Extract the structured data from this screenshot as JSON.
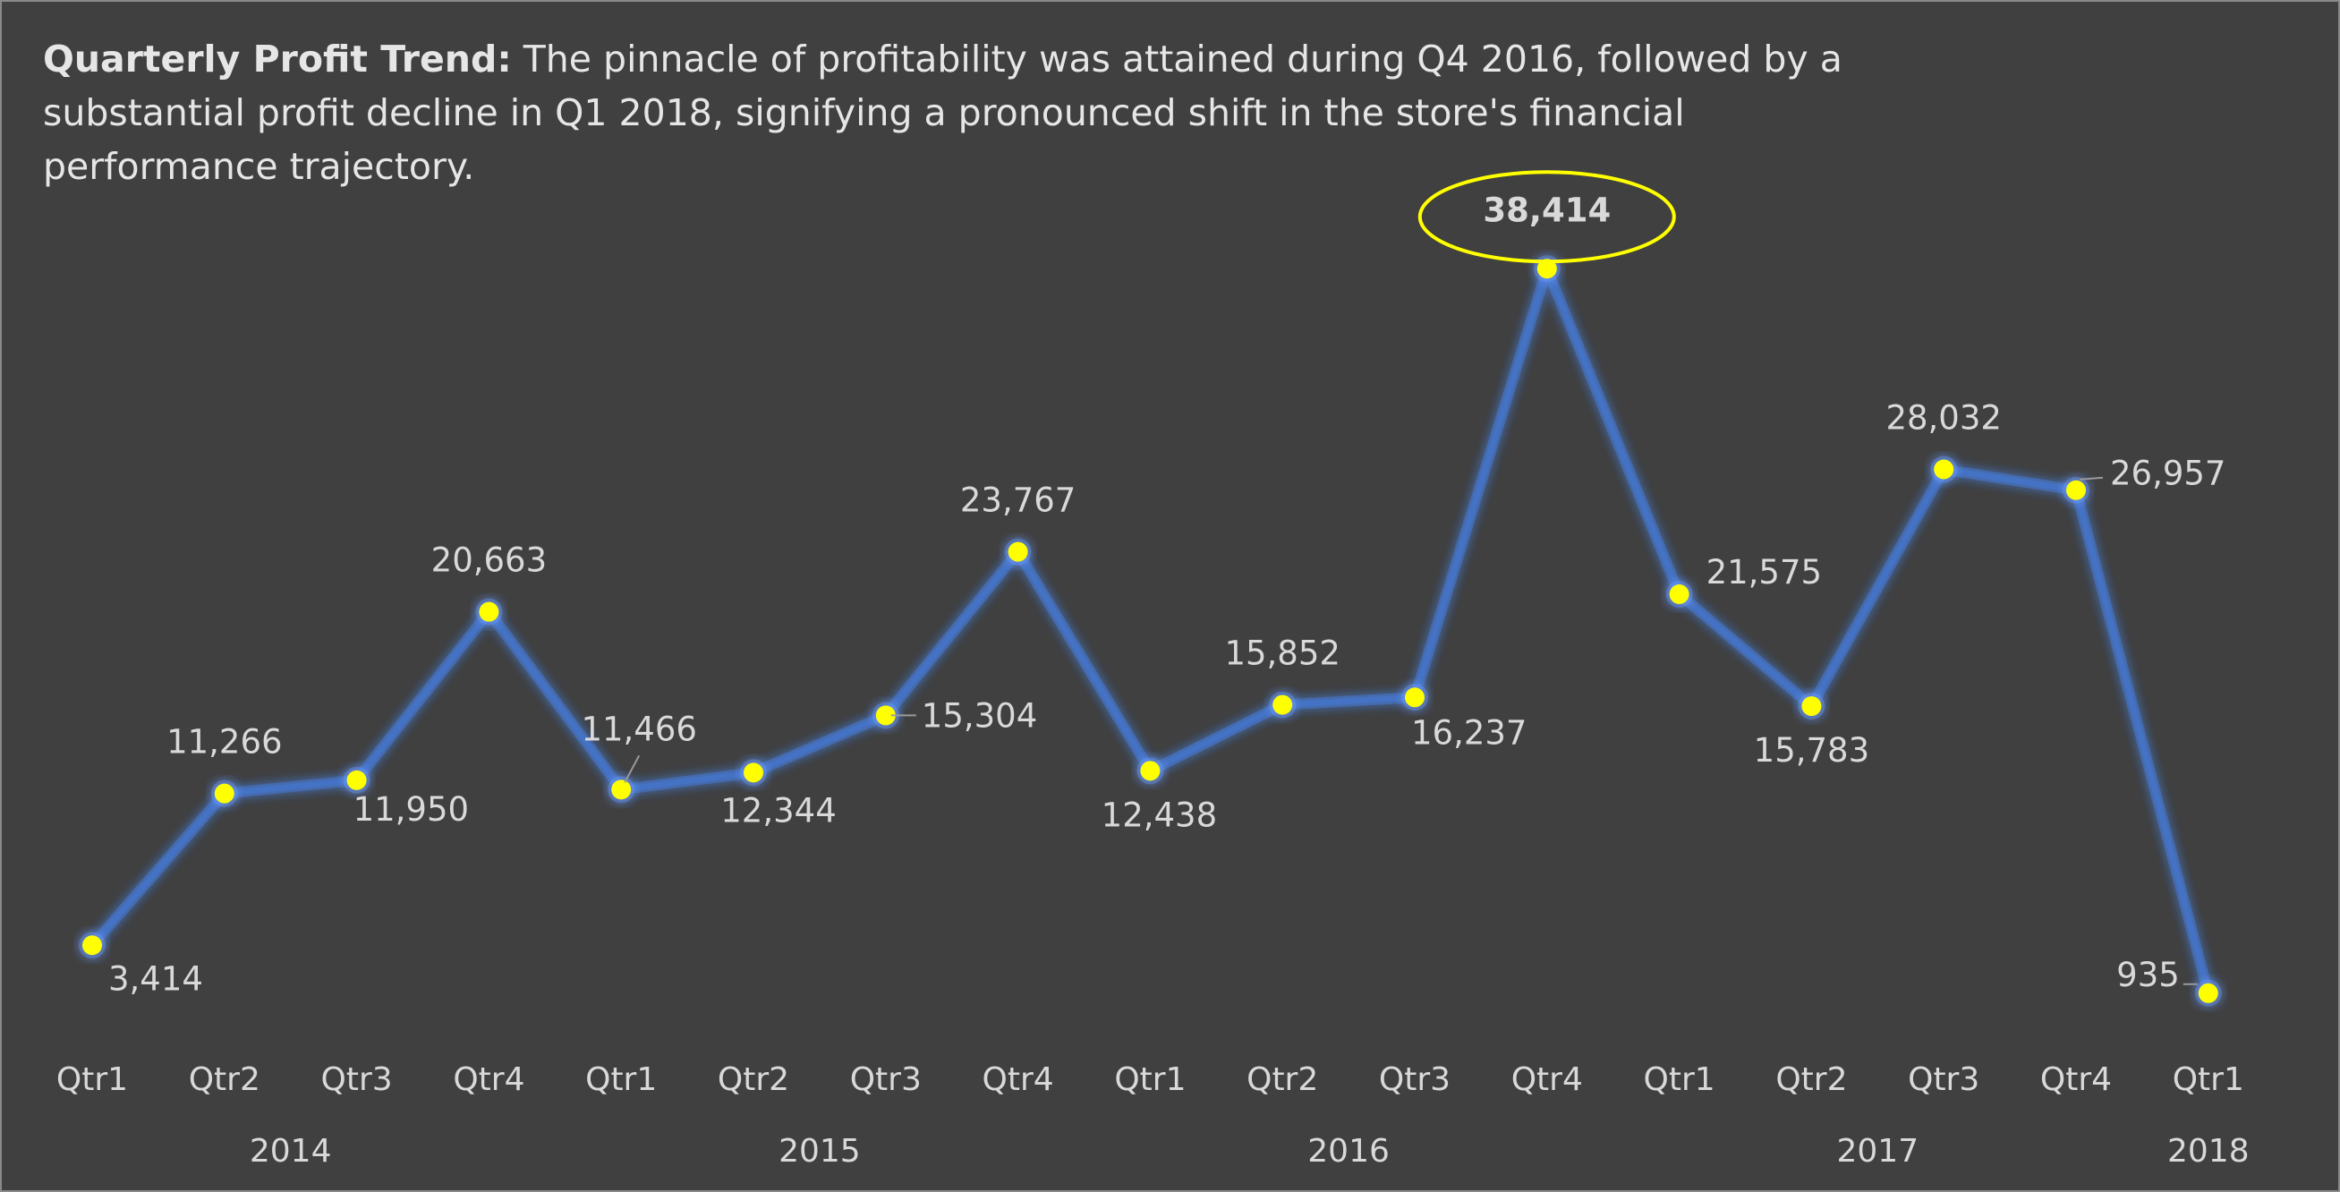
{
  "title": {
    "bold": "Quarterly Profit Trend:",
    "text": " The pinnacle of profitability was attained during Q4 2016, followed by a substantial profit decline in Q1 2018, signifying a pronounced shift in the store's financial performance trajectory."
  },
  "colors": {
    "background": "#404040",
    "line": "#4472c4",
    "marker": "#ffff00",
    "highlight_ellipse": "#ffff00",
    "text": "#d9d9d9"
  },
  "chart_data": {
    "type": "line",
    "title": "Quarterly Profit Trend",
    "grid": false,
    "legend": "none",
    "highlight": {
      "index": 11,
      "label": "38,414"
    },
    "x": [
      {
        "quarter": "Qtr1",
        "year": "2014"
      },
      {
        "quarter": "Qtr2",
        "year": "2014"
      },
      {
        "quarter": "Qtr3",
        "year": "2014"
      },
      {
        "quarter": "Qtr4",
        "year": "2014"
      },
      {
        "quarter": "Qtr1",
        "year": "2015"
      },
      {
        "quarter": "Qtr2",
        "year": "2015"
      },
      {
        "quarter": "Qtr3",
        "year": "2015"
      },
      {
        "quarter": "Qtr4",
        "year": "2015"
      },
      {
        "quarter": "Qtr1",
        "year": "2016"
      },
      {
        "quarter": "Qtr2",
        "year": "2016"
      },
      {
        "quarter": "Qtr3",
        "year": "2016"
      },
      {
        "quarter": "Qtr4",
        "year": "2016"
      },
      {
        "quarter": "Qtr1",
        "year": "2017"
      },
      {
        "quarter": "Qtr2",
        "year": "2017"
      },
      {
        "quarter": "Qtr3",
        "year": "2017"
      },
      {
        "quarter": "Qtr4",
        "year": "2017"
      },
      {
        "quarter": "Qtr1",
        "year": "2018"
      }
    ],
    "years": [
      "2014",
      "2015",
      "2016",
      "2017",
      "2018"
    ],
    "series": [
      {
        "values": [
          3414,
          11266,
          11950,
          20663,
          11466,
          12344,
          15304,
          23767,
          12438,
          15852,
          16237,
          38414,
          21575,
          15783,
          28032,
          26957,
          935
        ],
        "labels": [
          "3,414",
          "11,266",
          "11,950",
          "20,663",
          "11,466",
          "12,344",
          "15,304",
          "23,767",
          "12,438",
          "15,852",
          "16,237",
          "38,414",
          "21,575",
          "15,783",
          "28,032",
          "26,957",
          "935"
        ]
      }
    ]
  }
}
